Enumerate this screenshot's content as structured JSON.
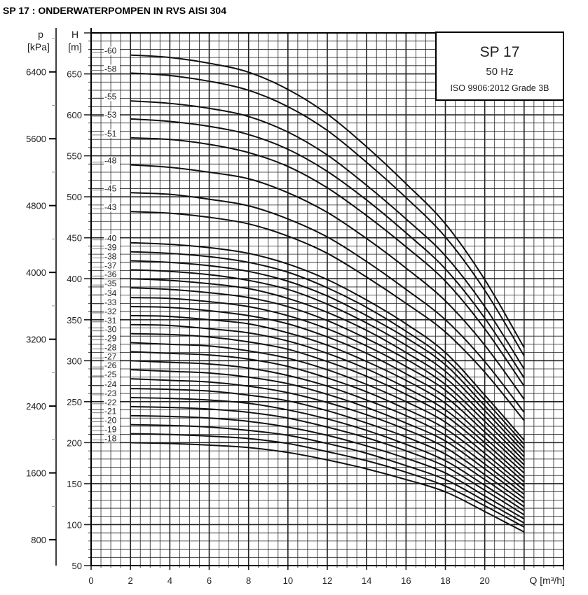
{
  "page_title": "SP 17 : ONDERWATERPOMPEN IN RVS AISI 304",
  "chart_data": {
    "type": "line",
    "legend_box": {
      "model": "SP 17",
      "frequency": "50 Hz",
      "standard": "ISO 9906:2012 Grade 3B",
      "placement": "top-right"
    },
    "xlabel": "Q [m³/h]",
    "ylabel": "H [m]",
    "ylabel_line1": "H",
    "ylabel_line2": "[m]",
    "y2label_line1": "p",
    "y2label_line2": "[kPa]",
    "xlim": [
      0,
      24
    ],
    "ylim": [
      50,
      700
    ],
    "y2lim_kpa": [
      490,
      6870
    ],
    "xticks": [
      0,
      2,
      4,
      6,
      8,
      10,
      12,
      14,
      16,
      18,
      20
    ],
    "yticks": [
      50,
      100,
      150,
      200,
      250,
      300,
      350,
      400,
      450,
      500,
      550,
      600,
      650
    ],
    "y2ticks": [
      800,
      1600,
      2400,
      3200,
      4000,
      4800,
      5600,
      6400
    ],
    "grid": true,
    "x": [
      2,
      4,
      6,
      8,
      10,
      12,
      14,
      16,
      18,
      20,
      22
    ],
    "series": [
      {
        "name": "-60",
        "values": [
          673,
          670,
          663,
          652,
          631,
          601,
          561,
          516,
          467,
          399,
          316
        ]
      },
      {
        "name": "-58",
        "values": [
          651,
          648,
          641,
          630,
          610,
          581,
          542,
          499,
          451,
          386,
          306
        ]
      },
      {
        "name": "-55",
        "values": [
          617,
          614,
          608,
          598,
          579,
          551,
          514,
          473,
          428,
          366,
          290
        ]
      },
      {
        "name": "-53",
        "values": [
          595,
          592,
          586,
          576,
          558,
          531,
          496,
          456,
          412,
          352,
          279
        ]
      },
      {
        "name": "-51",
        "values": [
          572,
          570,
          564,
          554,
          537,
          511,
          477,
          439,
          397,
          339,
          269
        ]
      },
      {
        "name": "-48",
        "values": [
          539,
          536,
          530,
          522,
          505,
          481,
          449,
          413,
          373,
          319,
          253
        ]
      },
      {
        "name": "-45",
        "values": [
          505,
          503,
          497,
          489,
          473,
          451,
          421,
          387,
          350,
          299,
          237
        ]
      },
      {
        "name": "-43",
        "values": [
          482,
          480,
          475,
          467,
          452,
          431,
          402,
          370,
          335,
          286,
          227
        ]
      },
      {
        "name": "-40",
        "values": [
          444,
          442,
          438,
          431,
          418,
          399,
          374,
          345,
          310,
          258,
          203
        ]
      },
      {
        "name": "-39",
        "values": [
          433,
          431,
          427,
          420,
          408,
          389,
          365,
          336,
          302,
          252,
          198
        ]
      },
      {
        "name": "-38",
        "values": [
          422,
          420,
          416,
          409,
          397,
          379,
          355,
          328,
          295,
          245,
          193
        ]
      },
      {
        "name": "-37",
        "values": [
          411,
          409,
          405,
          398,
          387,
          369,
          346,
          319,
          287,
          239,
          188
        ]
      },
      {
        "name": "-36",
        "values": [
          400,
          398,
          394,
          388,
          376,
          359,
          337,
          310,
          279,
          232,
          183
        ]
      },
      {
        "name": "-35",
        "values": [
          389,
          387,
          383,
          377,
          366,
          349,
          327,
          302,
          271,
          226,
          178
        ]
      },
      {
        "name": "-34",
        "values": [
          377,
          376,
          372,
          366,
          355,
          339,
          318,
          293,
          264,
          219,
          173
        ]
      },
      {
        "name": "-33",
        "values": [
          366,
          365,
          361,
          355,
          345,
          329,
          309,
          284,
          256,
          213,
          168
        ]
      },
      {
        "name": "-32",
        "values": [
          355,
          354,
          350,
          345,
          334,
          319,
          299,
          276,
          248,
          206,
          163
        ]
      },
      {
        "name": "-31",
        "values": [
          344,
          343,
          339,
          334,
          324,
          309,
          290,
          267,
          240,
          200,
          157
        ]
      },
      {
        "name": "-30",
        "values": [
          333,
          332,
          329,
          323,
          314,
          299,
          281,
          259,
          233,
          194,
          152
        ]
      },
      {
        "name": "-29",
        "values": [
          322,
          320,
          318,
          312,
          303,
          289,
          271,
          250,
          225,
          187,
          147
        ]
      },
      {
        "name": "-28",
        "values": [
          311,
          309,
          307,
          302,
          293,
          279,
          262,
          241,
          217,
          181,
          142
        ]
      },
      {
        "name": "-27",
        "values": [
          300,
          298,
          296,
          291,
          282,
          269,
          252,
          233,
          209,
          174,
          137
        ]
      },
      {
        "name": "-26",
        "values": [
          289,
          287,
          285,
          280,
          272,
          259,
          243,
          224,
          202,
          168,
          132
        ]
      },
      {
        "name": "-25",
        "values": [
          278,
          276,
          274,
          269,
          261,
          249,
          234,
          216,
          194,
          161,
          127
        ]
      },
      {
        "name": "-24",
        "values": [
          266,
          265,
          263,
          258,
          251,
          239,
          224,
          207,
          186,
          155,
          122
        ]
      },
      {
        "name": "-23",
        "values": [
          255,
          254,
          252,
          248,
          240,
          229,
          215,
          198,
          178,
          148,
          117
        ]
      },
      {
        "name": "-22",
        "values": [
          244,
          243,
          241,
          237,
          230,
          219,
          206,
          190,
          171,
          142,
          112
        ]
      },
      {
        "name": "-21",
        "values": [
          233,
          232,
          230,
          226,
          219,
          209,
          196,
          181,
          163,
          135,
          107
        ]
      },
      {
        "name": "-20",
        "values": [
          222,
          221,
          219,
          215,
          209,
          199,
          187,
          172,
          155,
          129,
          102
        ]
      },
      {
        "name": "-19",
        "values": [
          211,
          210,
          208,
          205,
          199,
          189,
          178,
          164,
          147,
          123,
          97
        ]
      },
      {
        "name": "-18",
        "values": [
          200,
          199,
          197,
          194,
          188,
          179,
          168,
          155,
          140,
          116,
          91
        ]
      }
    ]
  }
}
